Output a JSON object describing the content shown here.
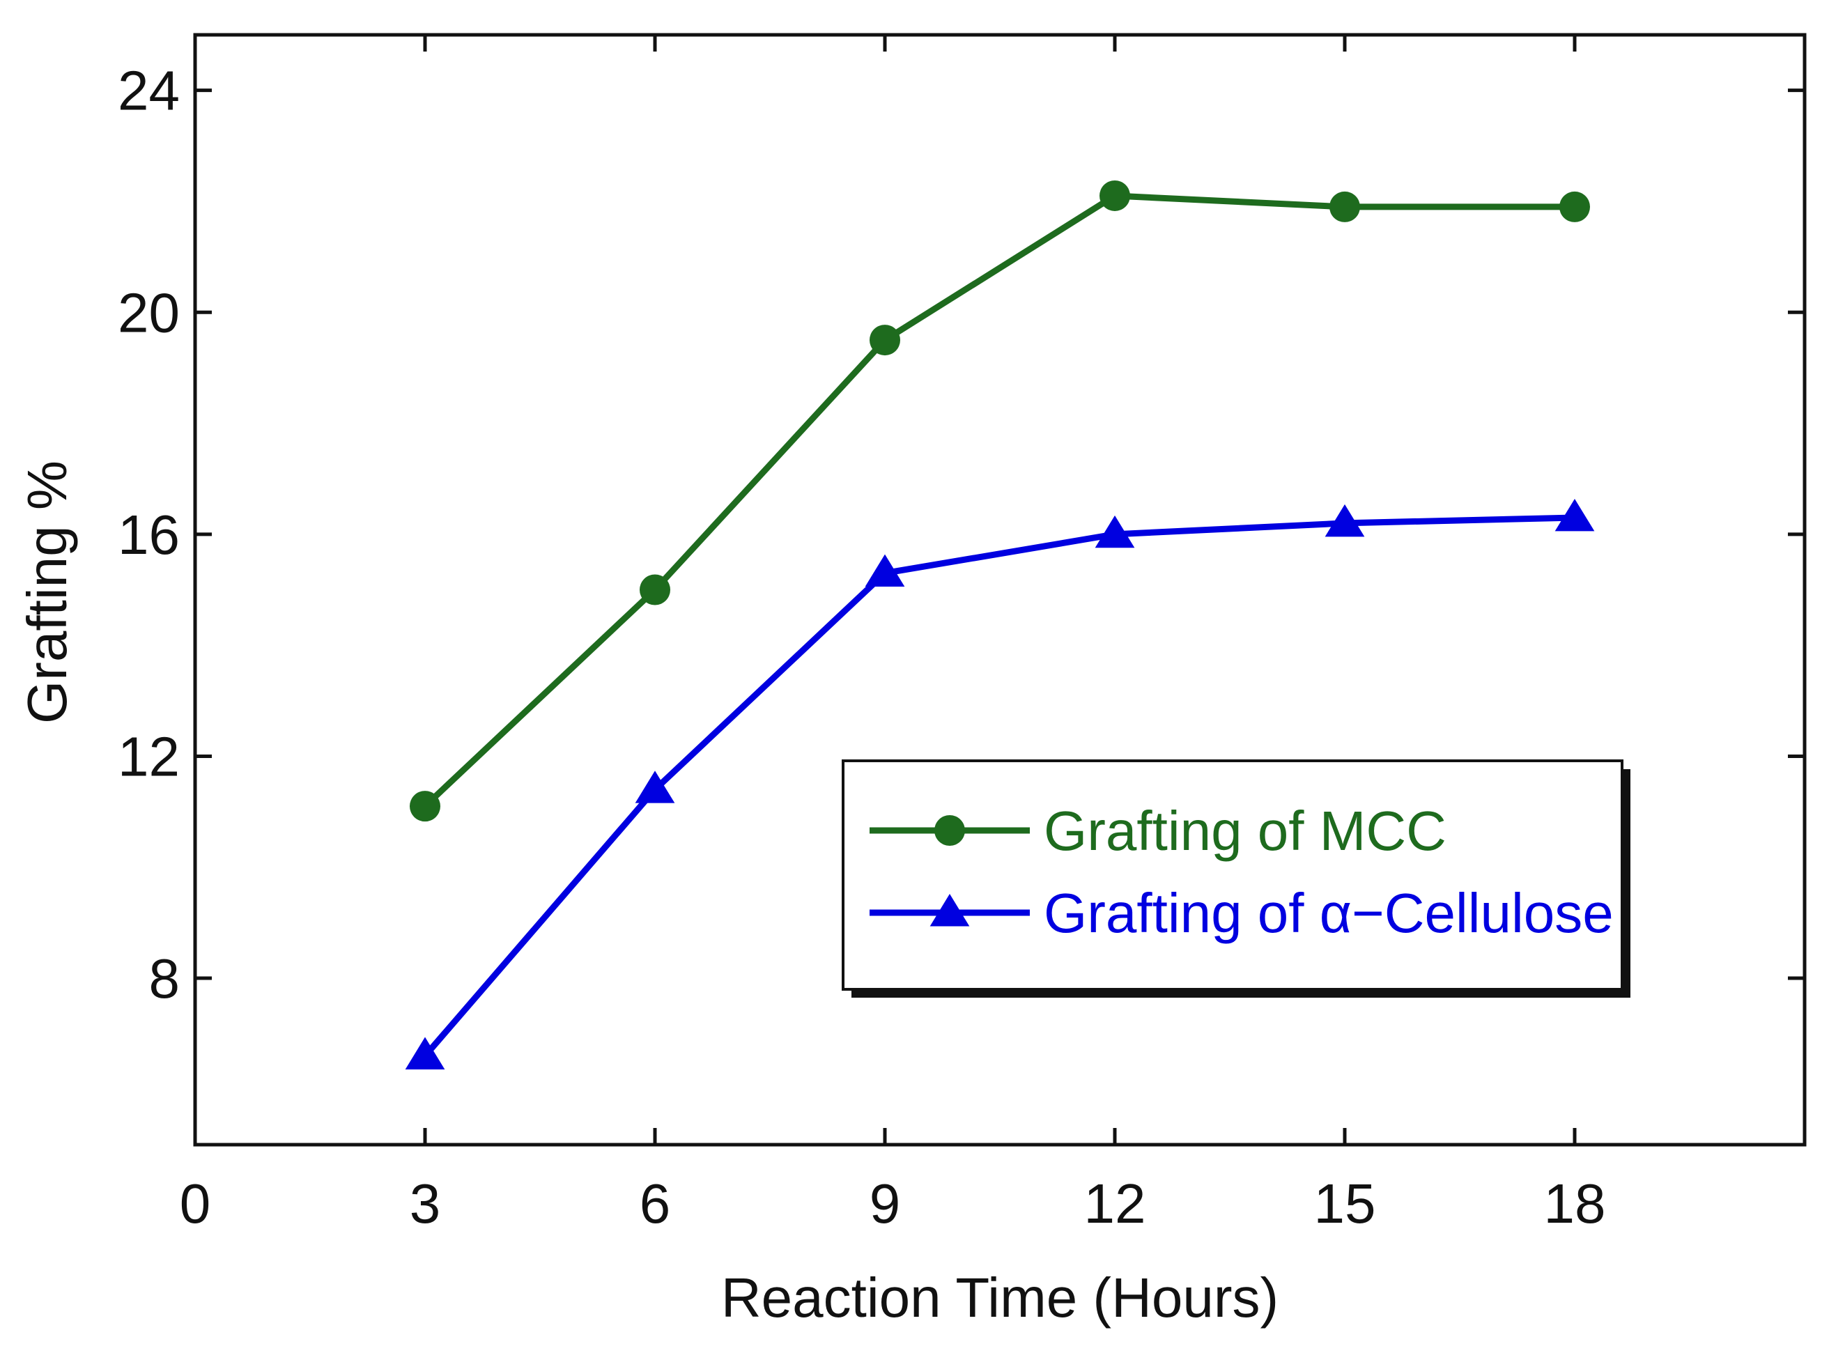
{
  "chart_data": {
    "type": "line",
    "title": "",
    "xlabel": "Reaction Time (Hours)",
    "ylabel": "Grafting %",
    "xlim": [
      0,
      21
    ],
    "ylim": [
      5,
      25
    ],
    "xticks": [
      0,
      3,
      6,
      9,
      12,
      15,
      18
    ],
    "yticks": [
      8,
      12,
      16,
      20,
      24
    ],
    "grid": false,
    "legend_position": "lower-right",
    "series": [
      {
        "name": "Grafting of MCC",
        "color": "#1e6b1e",
        "marker": "circle",
        "x": [
          3,
          6,
          9,
          12,
          15,
          18
        ],
        "y": [
          11.1,
          15.0,
          19.5,
          22.1,
          21.9,
          21.9
        ]
      },
      {
        "name": "Grafting of α−Cellulose",
        "color": "#0000e0",
        "marker": "triangle",
        "x": [
          3,
          6,
          9,
          12,
          15,
          18
        ],
        "y": [
          6.6,
          11.4,
          15.3,
          16.0,
          16.2,
          16.3
        ]
      }
    ]
  }
}
